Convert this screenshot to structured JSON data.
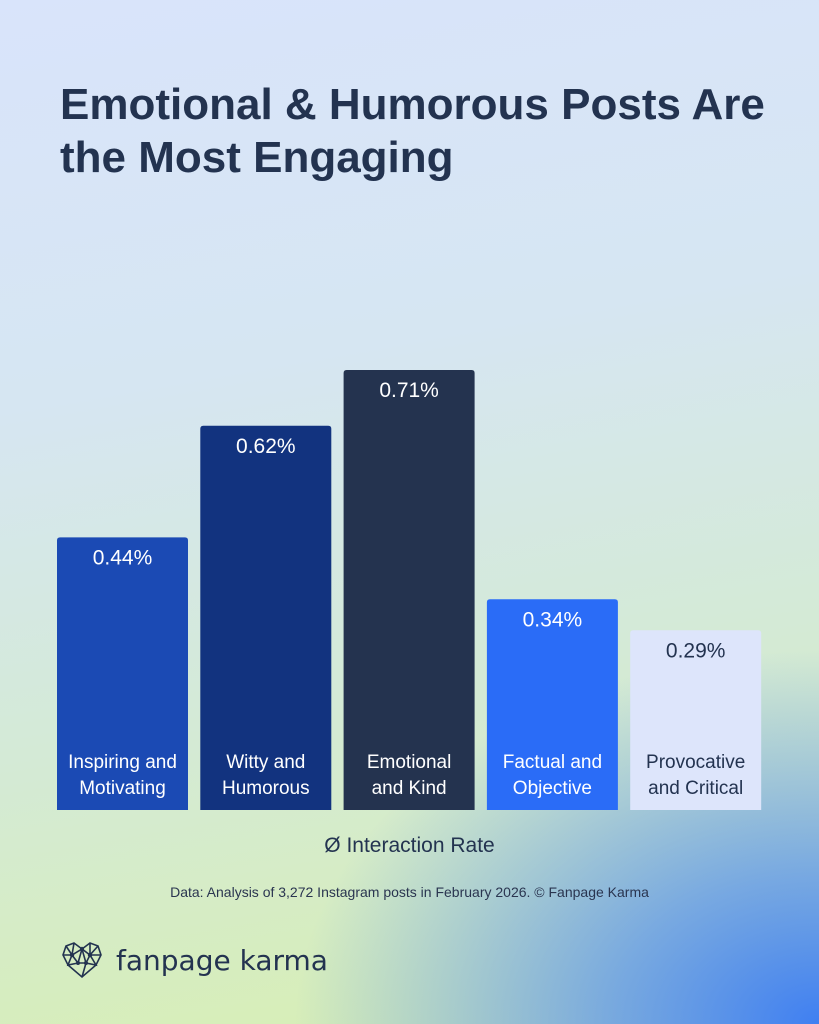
{
  "title": "Emotional & Humorous Posts Are the Most Engaging",
  "chart_data": {
    "type": "bar",
    "categories": [
      [
        "Inspiring and",
        "Motivating"
      ],
      [
        "Witty and",
        "Humorous"
      ],
      [
        "Emotional",
        "and Kind"
      ],
      [
        "Factual and",
        "Objective"
      ],
      [
        "Provocative",
        "and Critical"
      ]
    ],
    "values": [
      0.44,
      0.62,
      0.71,
      0.34,
      0.29
    ],
    "value_labels": [
      "0.44%",
      "0.62%",
      "0.71%",
      "0.34%",
      "0.29%"
    ],
    "colors": [
      "#1b4ab4",
      "#12337f",
      "#24334f",
      "#2a6cf7",
      "#dde5fb"
    ],
    "label_colors": [
      "#ffffff",
      "#ffffff",
      "#ffffff",
      "#ffffff",
      "#233350"
    ],
    "xlabel": "Ø Interaction Rate",
    "ylim": [
      0,
      0.71
    ],
    "grid": false
  },
  "source": "Data: Analysis of 3,272 Instagram posts in February 2026. © Fanpage Karma",
  "brand": "fanpage karma"
}
